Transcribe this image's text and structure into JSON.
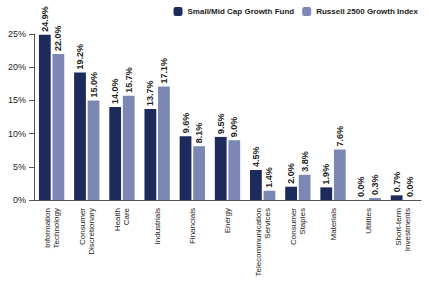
{
  "chart_data": {
    "type": "bar",
    "categories": [
      "Information Technology",
      "Consumer Discretionary",
      "Health Care",
      "Industrials",
      "Financials",
      "Energy",
      "Telecommunication Services",
      "Consumer Staples",
      "Materials",
      "Utilities",
      "Short-term Investments"
    ],
    "series": [
      {
        "name": "Small/Mid Cap Growth Fund",
        "color": "#1c2a5c",
        "values": [
          24.9,
          19.2,
          14.0,
          13.7,
          9.6,
          9.5,
          4.5,
          2.0,
          1.9,
          0.0,
          0.7
        ],
        "value_labels": [
          "24.9%",
          "19.2%",
          "14.0%",
          "13.7%",
          "9.6%",
          "9.5%",
          "4.5%",
          "2.0%",
          "1.9%",
          "0.0%",
          "0.7%"
        ]
      },
      {
        "name": "Russell 2500 Growth Index",
        "color": "#7c87b3",
        "values": [
          22.0,
          15.0,
          15.7,
          17.1,
          8.1,
          9.0,
          1.4,
          3.8,
          7.6,
          0.3,
          0.0
        ],
        "value_labels": [
          "22.0%",
          "15.0%",
          "15.7%",
          "17.1%",
          "8.1%",
          "9.0%",
          "1.4%",
          "3.8%",
          "7.6%",
          "0.3%",
          "0.0%"
        ]
      }
    ],
    "ylim": [
      0,
      25
    ],
    "yticks": [
      {
        "value": 0,
        "label": "0%"
      },
      {
        "value": 5,
        "label": "5%"
      },
      {
        "value": 10,
        "label": "10%"
      },
      {
        "value": 15,
        "label": "15%"
      },
      {
        "value": 20,
        "label": "20%"
      },
      {
        "value": 25,
        "label": "25%"
      }
    ],
    "grid": false,
    "legend": "top-right",
    "data_labels": true
  }
}
